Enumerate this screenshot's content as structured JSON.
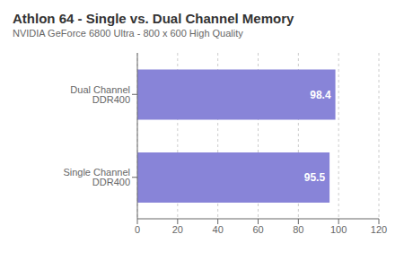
{
  "chart_data": {
    "type": "bar",
    "title": "Athlon 64 - Single vs. Dual Channel Memory",
    "subtitle": "NVIDIA GeForce 6800 Ultra - 800 x 600 High Quality",
    "categories": [
      "Dual Channel DDR400",
      "Single Channel DDR400"
    ],
    "values": [
      98.4,
      95.5
    ],
    "orientation": "horizontal",
    "xlim": [
      0,
      120
    ],
    "xticks": [
      0,
      20,
      40,
      60,
      80,
      100,
      120
    ],
    "grid": true,
    "data_labels": true
  }
}
